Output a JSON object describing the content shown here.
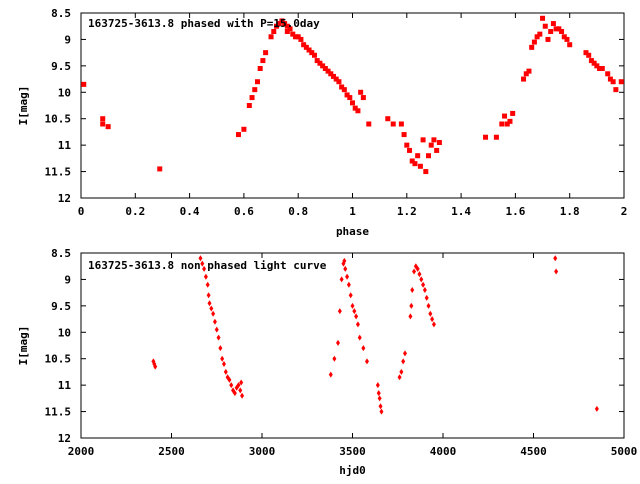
{
  "chart_data": [
    {
      "type": "scatter",
      "title": "163725-3613.8 phased with P=15.0day",
      "xlabel": "phase",
      "ylabel": "I[mag]",
      "xlim": [
        0,
        2
      ],
      "ylim": [
        12,
        8.5
      ],
      "y_inverted": true,
      "xticks": [
        "0",
        "0.2",
        "0.4",
        "0.6",
        "0.8",
        "1",
        "1.2",
        "1.4",
        "1.6",
        "1.8",
        "2"
      ],
      "yticks": [
        "8.5",
        "9",
        "9.5",
        "10",
        "10.5",
        "11",
        "11.5",
        "12"
      ],
      "grid": false,
      "color": "#ff0000",
      "x": [
        0.01,
        0.08,
        0.08,
        0.1,
        0.29,
        0.58,
        0.6,
        0.62,
        0.63,
        0.64,
        0.65,
        0.66,
        0.67,
        0.68,
        0.7,
        0.71,
        0.72,
        0.73,
        0.74,
        0.75,
        0.76,
        0.76,
        0.77,
        0.78,
        0.79,
        0.8,
        0.81,
        0.82,
        0.83,
        0.84,
        0.85,
        0.86,
        0.87,
        0.88,
        0.89,
        0.9,
        0.91,
        0.92,
        0.93,
        0.94,
        0.95,
        0.96,
        0.97,
        0.98,
        0.99,
        1.0,
        1.01,
        1.02,
        1.03,
        1.04,
        1.06,
        1.13,
        1.15,
        1.18,
        1.19,
        1.2,
        1.21,
        1.22,
        1.23,
        1.24,
        1.25,
        1.26,
        1.27,
        1.28,
        1.29,
        1.3,
        1.31,
        1.32,
        1.49,
        1.53,
        1.55,
        1.56,
        1.57,
        1.58,
        1.59,
        1.63,
        1.64,
        1.65,
        1.66,
        1.67,
        1.68,
        1.69,
        1.7,
        1.71,
        1.72,
        1.73,
        1.74,
        1.75,
        1.76,
        1.77,
        1.78,
        1.79,
        1.8,
        1.86,
        1.87,
        1.88,
        1.89,
        1.9,
        1.91,
        1.92,
        1.94,
        1.95,
        1.96,
        1.97,
        1.99
      ],
      "y": [
        9.85,
        10.5,
        10.6,
        10.65,
        11.45,
        10.8,
        10.7,
        10.25,
        10.1,
        9.95,
        9.8,
        9.55,
        9.4,
        9.25,
        8.95,
        8.85,
        8.75,
        8.7,
        8.65,
        8.7,
        8.75,
        8.85,
        8.8,
        8.9,
        8.95,
        8.95,
        9.0,
        9.1,
        9.15,
        9.2,
        9.25,
        9.3,
        9.4,
        9.45,
        9.5,
        9.55,
        9.6,
        9.65,
        9.7,
        9.75,
        9.8,
        9.9,
        9.95,
        10.05,
        10.1,
        10.2,
        10.3,
        10.35,
        10.0,
        10.1,
        10.6,
        10.5,
        10.6,
        10.6,
        10.8,
        11.0,
        11.1,
        11.3,
        11.35,
        11.2,
        11.4,
        10.9,
        11.5,
        11.2,
        11.0,
        10.9,
        11.1,
        10.95,
        10.85,
        10.85,
        10.6,
        10.45,
        10.6,
        10.55,
        10.4,
        9.75,
        9.65,
        9.6,
        9.15,
        9.05,
        8.95,
        8.9,
        8.6,
        8.75,
        9.0,
        8.85,
        8.7,
        8.8,
        8.8,
        8.85,
        8.95,
        9.0,
        9.1,
        9.25,
        9.3,
        9.4,
        9.45,
        9.5,
        9.55,
        9.55,
        9.65,
        9.75,
        9.8,
        9.95,
        9.8
      ]
    },
    {
      "type": "scatter",
      "title": "163725-3613.8 non phased light curve",
      "xlabel": "hjd0",
      "ylabel": "I[mag]",
      "xlim": [
        2000,
        5000
      ],
      "ylim": [
        12,
        8.5
      ],
      "y_inverted": true,
      "xticks": [
        "2000",
        "2500",
        "3000",
        "3500",
        "4000",
        "4500",
        "5000"
      ],
      "yticks": [
        "8.5",
        "9",
        "9.5",
        "10",
        "10.5",
        "11",
        "11.5",
        "12"
      ],
      "grid": false,
      "color": "#ff0000",
      "x": [
        2400,
        2405,
        2410,
        2660,
        2670,
        2680,
        2690,
        2700,
        2705,
        2710,
        2720,
        2730,
        2740,
        2750,
        2760,
        2770,
        2780,
        2790,
        2800,
        2810,
        2820,
        2830,
        2840,
        2850,
        2860,
        2870,
        2880,
        2885,
        2890,
        3380,
        3400,
        3420,
        3430,
        3440,
        3450,
        3455,
        3460,
        3470,
        3480,
        3490,
        3500,
        3510,
        3520,
        3530,
        3540,
        3560,
        3580,
        3640,
        3645,
        3650,
        3655,
        3660,
        3760,
        3770,
        3780,
        3790,
        3820,
        3825,
        3830,
        3840,
        3850,
        3860,
        3870,
        3880,
        3890,
        3900,
        3910,
        3920,
        3930,
        3940,
        3950,
        4620,
        4625,
        4850
      ],
      "y": [
        10.55,
        10.6,
        10.65,
        8.6,
        8.7,
        8.8,
        8.95,
        9.1,
        9.3,
        9.45,
        9.55,
        9.65,
        9.8,
        9.95,
        10.1,
        10.3,
        10.5,
        10.6,
        10.75,
        10.85,
        10.9,
        11.0,
        11.1,
        11.15,
        11.05,
        11.0,
        11.1,
        10.95,
        11.2,
        10.8,
        10.5,
        10.2,
        9.6,
        9.0,
        8.7,
        8.65,
        8.8,
        8.95,
        9.1,
        9.3,
        9.5,
        9.6,
        9.7,
        9.85,
        10.1,
        10.3,
        10.55,
        11.0,
        11.15,
        11.25,
        11.4,
        11.5,
        10.85,
        10.75,
        10.55,
        10.4,
        9.7,
        9.5,
        9.2,
        8.85,
        8.75,
        8.8,
        8.9,
        9.0,
        9.1,
        9.2,
        9.35,
        9.5,
        9.65,
        9.75,
        9.85,
        8.6,
        8.85,
        11.45
      ]
    }
  ]
}
